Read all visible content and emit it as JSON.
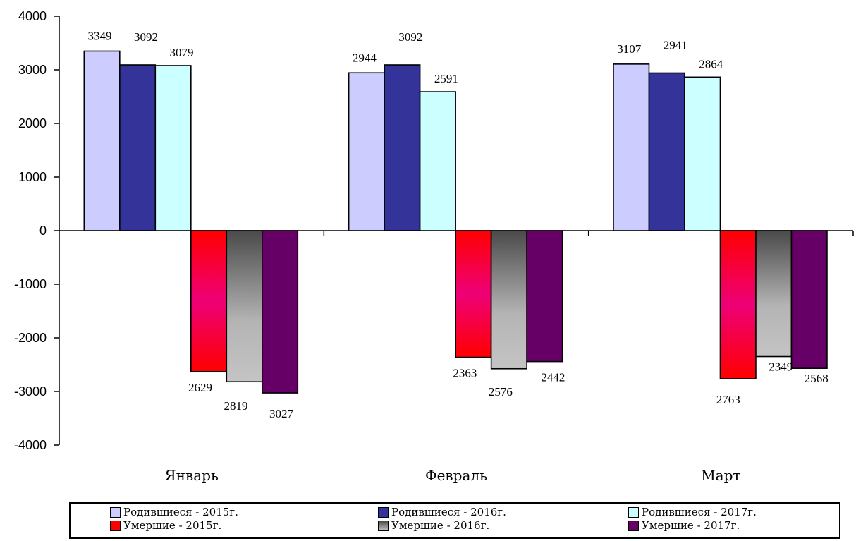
{
  "chart_data": {
    "type": "bar",
    "categories": [
      "Январь",
      "Февраль",
      "Март"
    ],
    "ylim": [
      -4000,
      4000
    ],
    "yticks": [
      4000,
      3000,
      2000,
      1000,
      0,
      -1000,
      -2000,
      -3000,
      -4000
    ],
    "grid": false,
    "legend_position": "bottom",
    "series": [
      {
        "name": "Родившиеся - 2015г.",
        "values": [
          3349,
          2944,
          3107
        ],
        "labels": [
          "3349",
          "2944",
          "3107"
        ],
        "color": "#ccccff"
      },
      {
        "name": "Родившиеся - 2016г.",
        "values": [
          3092,
          3092,
          2941
        ],
        "labels": [
          "3092",
          "3092",
          "2941"
        ],
        "color": "#333399"
      },
      {
        "name": "Родившиеся - 2017г.",
        "values": [
          3079,
          2591,
          2864
        ],
        "labels": [
          "3079",
          "2591",
          "2864"
        ],
        "color": "#ccffff"
      },
      {
        "name": "Умершие - 2015г.",
        "values": [
          -2629,
          -2363,
          -2763
        ],
        "labels": [
          "2629",
          "2363",
          "2763"
        ],
        "color": "#ff0000"
      },
      {
        "name": "Умершие - 2016г.",
        "values": [
          -2819,
          -2576,
          -2349
        ],
        "labels": [
          "2819",
          "2576",
          "2349"
        ],
        "color": "#a0a0a0"
      },
      {
        "name": "Умершие - 2017г.",
        "values": [
          -3027,
          -2442,
          -2568
        ],
        "labels": [
          "3027",
          "2442",
          "2568"
        ],
        "color": "#660066"
      }
    ]
  }
}
